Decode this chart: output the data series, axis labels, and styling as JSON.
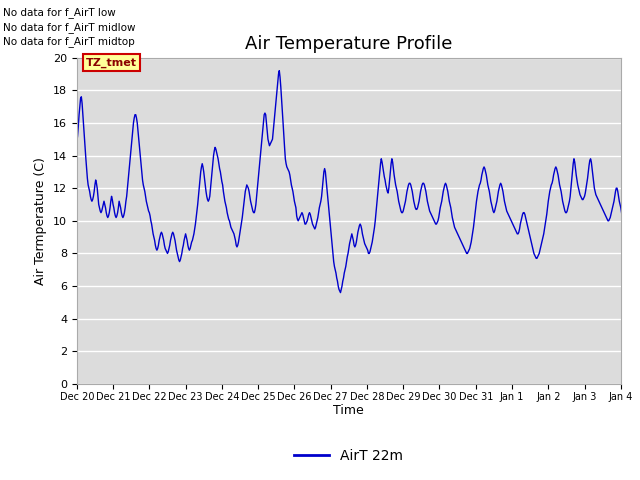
{
  "title": "Air Temperature Profile",
  "ylabel": "Air Termperature (C)",
  "xlabel": "Time",
  "ylim": [
    0,
    20
  ],
  "yticks": [
    0,
    2,
    4,
    6,
    8,
    10,
    12,
    14,
    16,
    18,
    20
  ],
  "line_color": "#0000CC",
  "line_width": 1.0,
  "bg_color": "#DCDCDC",
  "legend_label": "AirT 22m",
  "text_annotations": [
    "No data for f_AirT low",
    "No data for f_AirT midlow",
    "No data for f_AirT midtop"
  ],
  "tz_label": "TZ_tmet",
  "title_fontsize": 13,
  "axis_fontsize": 9,
  "tick_fontsize": 8,
  "temps": [
    14.8,
    15.2,
    15.8,
    16.5,
    17.0,
    17.5,
    17.6,
    17.2,
    16.5,
    15.8,
    15.0,
    14.5,
    13.8,
    13.2,
    12.6,
    12.2,
    12.0,
    11.8,
    11.5,
    11.3,
    11.2,
    11.3,
    11.5,
    11.8,
    12.2,
    12.5,
    12.3,
    12.0,
    11.5,
    11.0,
    10.8,
    10.6,
    10.5,
    10.6,
    10.8,
    11.0,
    11.2,
    11.0,
    10.8,
    10.5,
    10.3,
    10.2,
    10.3,
    10.5,
    10.8,
    11.2,
    11.5,
    11.3,
    11.0,
    10.8,
    10.5,
    10.3,
    10.2,
    10.3,
    10.5,
    10.8,
    11.2,
    11.0,
    10.8,
    10.5,
    10.3,
    10.2,
    10.3,
    10.5,
    10.8,
    11.2,
    11.5,
    12.0,
    12.5,
    13.0,
    13.5,
    14.0,
    14.5,
    15.0,
    15.5,
    16.0,
    16.3,
    16.5,
    16.5,
    16.3,
    16.0,
    15.5,
    15.0,
    14.5,
    14.0,
    13.5,
    13.0,
    12.5,
    12.2,
    12.0,
    11.8,
    11.5,
    11.2,
    11.0,
    10.8,
    10.6,
    10.5,
    10.3,
    10.0,
    9.8,
    9.5,
    9.2,
    9.0,
    8.8,
    8.5,
    8.3,
    8.2,
    8.3,
    8.5,
    8.8,
    9.0,
    9.2,
    9.3,
    9.2,
    9.0,
    8.8,
    8.5,
    8.3,
    8.2,
    8.1,
    8.0,
    8.1,
    8.3,
    8.5,
    8.8,
    9.0,
    9.2,
    9.3,
    9.2,
    9.0,
    8.8,
    8.5,
    8.2,
    8.0,
    7.8,
    7.6,
    7.5,
    7.6,
    7.8,
    8.0,
    8.3,
    8.5,
    8.8,
    9.0,
    9.2,
    9.0,
    8.8,
    8.5,
    8.3,
    8.2,
    8.3,
    8.5,
    8.7,
    8.8,
    9.0,
    9.2,
    9.5,
    9.8,
    10.2,
    10.6,
    11.0,
    11.5,
    12.0,
    12.5,
    13.0,
    13.3,
    13.5,
    13.3,
    13.0,
    12.6,
    12.2,
    11.8,
    11.5,
    11.3,
    11.2,
    11.3,
    11.5,
    12.0,
    12.5,
    13.0,
    13.5,
    14.0,
    14.3,
    14.5,
    14.4,
    14.2,
    14.0,
    13.8,
    13.5,
    13.2,
    13.0,
    12.7,
    12.4,
    12.2,
    11.8,
    11.5,
    11.2,
    11.0,
    10.8,
    10.5,
    10.3,
    10.1,
    10.0,
    9.8,
    9.6,
    9.5,
    9.4,
    9.3,
    9.2,
    9.0,
    8.8,
    8.5,
    8.4,
    8.5,
    8.7,
    9.0,
    9.3,
    9.6,
    9.9,
    10.2,
    10.6,
    11.0,
    11.4,
    11.8,
    12.0,
    12.2,
    12.1,
    12.0,
    11.8,
    11.5,
    11.2,
    11.0,
    10.8,
    10.6,
    10.5,
    10.5,
    10.7,
    11.0,
    11.5,
    12.0,
    12.5,
    13.0,
    13.5,
    14.0,
    14.5,
    15.0,
    15.5,
    16.0,
    16.5,
    16.6,
    16.5,
    16.0,
    15.5,
    15.0,
    14.8,
    14.6,
    14.7,
    14.8,
    14.9,
    15.0,
    15.5,
    16.0,
    16.5,
    17.0,
    17.5,
    18.0,
    18.5,
    19.0,
    19.2,
    18.8,
    18.2,
    17.5,
    16.8,
    16.0,
    15.2,
    14.5,
    13.8,
    13.5,
    13.3,
    13.2,
    13.1,
    13.0,
    12.8,
    12.5,
    12.2,
    12.0,
    11.8,
    11.5,
    11.2,
    11.0,
    10.8,
    10.3,
    10.1,
    10.0,
    10.1,
    10.2,
    10.3,
    10.4,
    10.5,
    10.4,
    10.2,
    10.0,
    9.8,
    9.8,
    9.9,
    10.0,
    10.2,
    10.4,
    10.5,
    10.4,
    10.2,
    10.0,
    9.8,
    9.7,
    9.6,
    9.5,
    9.6,
    9.8,
    10.0,
    10.2,
    10.5,
    10.8,
    11.0,
    11.2,
    11.5,
    12.0,
    12.5,
    13.0,
    13.2,
    13.0,
    12.5,
    12.0,
    11.5,
    11.0,
    10.5,
    10.0,
    9.5,
    9.0,
    8.5,
    8.0,
    7.5,
    7.2,
    7.0,
    6.8,
    6.5,
    6.3,
    6.0,
    5.8,
    5.7,
    5.6,
    5.8,
    6.0,
    6.3,
    6.5,
    6.8,
    7.0,
    7.2,
    7.5,
    7.8,
    8.0,
    8.3,
    8.6,
    8.8,
    9.0,
    9.2,
    9.0,
    8.8,
    8.5,
    8.4,
    8.5,
    8.7,
    9.0,
    9.3,
    9.5,
    9.7,
    9.8,
    9.7,
    9.5,
    9.2,
    9.0,
    8.8,
    8.6,
    8.5,
    8.4,
    8.3,
    8.2,
    8.0,
    8.0,
    8.1,
    8.3,
    8.5,
    8.7,
    9.0,
    9.3,
    9.6,
    10.0,
    10.5,
    11.0,
    11.5,
    12.0,
    12.5,
    13.0,
    13.5,
    13.8,
    13.6,
    13.3,
    13.0,
    12.7,
    12.5,
    12.2,
    12.0,
    11.8,
    11.7,
    12.0,
    12.5,
    13.0,
    13.5,
    13.8,
    13.6,
    13.2,
    12.8,
    12.5,
    12.2,
    12.0,
    11.8,
    11.5,
    11.2,
    11.0,
    10.8,
    10.6,
    10.5,
    10.5,
    10.6,
    10.8,
    11.0,
    11.2,
    11.5,
    11.8,
    12.0,
    12.2,
    12.3,
    12.3,
    12.2,
    12.0,
    11.8,
    11.5,
    11.2,
    11.0,
    10.8,
    10.7,
    10.7,
    10.8,
    11.0,
    11.2,
    11.5,
    11.8,
    12.0,
    12.2,
    12.3,
    12.3,
    12.2,
    12.0,
    11.8,
    11.5,
    11.2,
    11.0,
    10.8,
    10.6,
    10.5,
    10.4,
    10.3,
    10.2,
    10.1,
    10.0,
    9.9,
    9.8,
    9.8,
    9.9,
    10.0,
    10.2,
    10.5,
    10.8,
    11.0,
    11.2,
    11.5,
    11.8,
    12.0,
    12.2,
    12.3,
    12.2,
    12.0,
    11.8,
    11.5,
    11.2,
    11.0,
    10.8,
    10.5,
    10.2,
    10.0,
    9.8,
    9.6,
    9.5,
    9.4,
    9.3,
    9.2,
    9.1,
    9.0,
    8.9,
    8.8,
    8.7,
    8.6,
    8.5,
    8.4,
    8.3,
    8.2,
    8.1,
    8.0,
    8.0,
    8.1,
    8.2,
    8.3,
    8.5,
    8.7,
    9.0,
    9.3,
    9.6,
    10.0,
    10.4,
    10.8,
    11.2,
    11.5,
    11.8,
    12.0,
    12.2,
    12.3,
    12.5,
    12.8,
    13.0,
    13.2,
    13.3,
    13.2,
    13.0,
    12.8,
    12.5,
    12.2,
    12.0,
    11.8,
    11.5,
    11.2,
    11.0,
    10.8,
    10.6,
    10.5,
    10.6,
    10.8,
    11.0,
    11.2,
    11.5,
    11.8,
    12.0,
    12.2,
    12.3,
    12.2,
    12.0,
    11.8,
    11.5,
    11.2,
    11.0,
    10.8,
    10.6,
    10.5,
    10.4,
    10.3,
    10.2,
    10.1,
    10.0,
    9.9,
    9.8,
    9.7,
    9.6,
    9.5,
    9.4,
    9.3,
    9.2,
    9.2,
    9.3,
    9.5,
    9.8,
    10.0,
    10.2,
    10.4,
    10.5,
    10.5,
    10.4,
    10.2,
    10.0,
    9.8,
    9.6,
    9.4,
    9.2,
    9.0,
    8.8,
    8.6,
    8.4,
    8.2,
    8.0,
    7.9,
    7.8,
    7.7,
    7.7,
    7.8,
    7.9,
    8.0,
    8.2,
    8.4,
    8.6,
    8.8,
    9.0,
    9.2,
    9.5,
    9.8,
    10.1,
    10.4,
    10.8,
    11.2,
    11.5,
    11.8,
    12.0,
    12.2,
    12.3,
    12.5,
    12.8,
    13.0,
    13.2,
    13.3,
    13.2,
    13.0,
    12.8,
    12.5,
    12.2,
    12.0,
    11.8,
    11.5,
    11.2,
    11.0,
    10.8,
    10.6,
    10.5,
    10.5,
    10.6,
    10.8,
    11.0,
    11.2,
    11.5,
    12.0,
    12.5,
    13.0,
    13.5,
    13.8,
    13.6,
    13.2,
    12.8,
    12.5,
    12.2,
    12.0,
    11.8,
    11.6,
    11.5,
    11.4,
    11.3,
    11.3,
    11.4,
    11.5,
    11.7,
    12.0,
    12.3,
    12.6,
    13.0,
    13.4,
    13.7,
    13.8,
    13.6,
    13.2,
    12.8,
    12.4,
    12.0,
    11.8,
    11.6,
    11.5,
    11.4,
    11.3,
    11.2,
    11.1,
    11.0,
    10.9,
    10.8,
    10.7,
    10.6,
    10.5,
    10.4,
    10.3,
    10.2,
    10.1,
    10.0,
    10.0,
    10.1,
    10.2,
    10.4,
    10.6,
    10.8,
    11.0,
    11.2,
    11.5,
    11.8,
    12.0,
    12.0,
    11.8,
    11.5,
    11.2,
    11.0,
    10.8,
    10.5,
    10.2,
    10.0,
    9.8,
    9.6,
    9.4,
    9.2,
    9.0,
    8.8,
    8.6,
    8.5,
    8.5,
    8.6,
    8.8,
    9.0,
    9.2,
    9.5,
    9.8,
    10.0,
    10.2,
    10.4,
    10.5,
    10.5,
    10.4,
    10.2,
    10.0,
    9.8,
    9.6,
    9.4,
    9.2,
    9.0,
    8.8,
    8.6,
    8.5,
    8.4,
    8.4,
    8.5,
    8.7,
    9.0,
    9.3,
    9.6,
    10.0,
    10.4,
    10.8,
    11.2,
    11.5,
    11.8,
    12.0,
    12.2,
    12.3,
    12.2,
    12.0,
    11.8,
    11.5,
    11.2,
    11.0,
    10.8,
    10.6,
    10.5,
    10.6,
    10.8,
    11.0,
    11.2,
    11.5,
    11.8,
    12.0,
    12.2,
    12.5,
    12.8,
    13.0,
    13.2,
    13.3,
    13.2,
    13.0,
    12.8,
    12.5,
    12.2,
    12.0,
    11.8,
    11.5,
    11.2,
    11.0,
    10.8,
    10.6,
    10.5,
    10.4,
    10.3,
    10.2,
    10.1,
    10.0,
    9.9,
    9.8,
    9.8,
    9.9,
    10.0,
    10.2,
    10.5,
    10.8,
    11.0,
    11.2,
    11.5,
    11.8,
    12.0,
    12.0,
    11.8,
    11.5,
    11.2,
    11.0,
    10.8,
    10.5,
    10.2,
    10.0,
    9.8,
    9.6,
    9.4,
    9.2,
    9.0,
    8.8,
    8.6,
    8.5,
    8.4,
    8.3,
    8.2,
    8.1,
    8.0,
    7.9,
    7.8,
    7.8,
    7.9,
    8.0,
    8.2,
    8.4,
    8.6,
    8.8,
    9.0,
    9.2,
    9.5,
    9.8,
    10.0,
    10.2,
    10.5,
    10.8,
    11.0,
    11.2,
    11.5,
    11.8,
    12.0,
    12.2,
    12.3,
    12.2,
    11.8,
    11.5,
    11.0,
    10.5,
    10.0
  ]
}
